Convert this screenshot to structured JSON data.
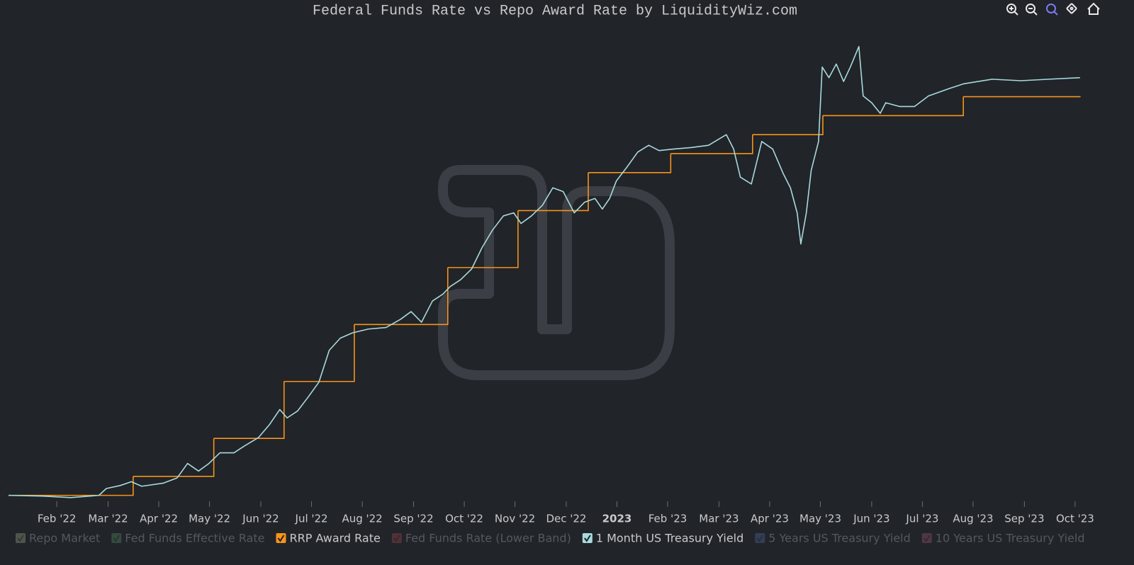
{
  "chart_data": {
    "type": "line",
    "title": "Federal Funds Rate vs Repo Award Rate by LiquidityWiz.com",
    "xlim": [
      2021.99,
      2023.8
    ],
    "ylim": [
      0,
      6.2
    ],
    "xticks": [
      {
        "value": 2022.083,
        "label": "Feb '22"
      },
      {
        "value": 2022.167,
        "label": "Mar '22"
      },
      {
        "value": 2022.25,
        "label": "Apr '22"
      },
      {
        "value": 2022.333,
        "label": "May '22"
      },
      {
        "value": 2022.417,
        "label": "Jun '22"
      },
      {
        "value": 2022.5,
        "label": "Jul '22"
      },
      {
        "value": 2022.583,
        "label": "Aug '22"
      },
      {
        "value": 2022.667,
        "label": "Sep '22"
      },
      {
        "value": 2022.75,
        "label": "Oct '22"
      },
      {
        "value": 2022.833,
        "label": "Nov '22"
      },
      {
        "value": 2022.917,
        "label": "Dec '22"
      },
      2023,
      {
        "value": 2023.083,
        "label": "Feb '23"
      },
      {
        "value": 2023.167,
        "label": "Mar '23"
      },
      {
        "value": 2023.25,
        "label": "Apr '23"
      },
      {
        "value": 2023.333,
        "label": "May '23"
      },
      {
        "value": 2023.417,
        "label": "Jun '23"
      },
      {
        "value": 2023.5,
        "label": "Jul '23"
      },
      {
        "value": 2023.583,
        "label": "Aug '23"
      },
      {
        "value": 2023.667,
        "label": "Sep '23"
      },
      {
        "value": 2023.75,
        "label": "Oct '23"
      }
    ],
    "grid": false,
    "legend": "bottom",
    "series": [
      {
        "name": "Repo Market",
        "color": "#b5c99a",
        "visible": false
      },
      {
        "name": "Fed Funds Effective Rate",
        "color": "#5fa873",
        "visible": false
      },
      {
        "name": "RRP Award Rate",
        "color": "#f7931a",
        "visible": true,
        "step": "after",
        "x": [
          2022.004,
          2022.208,
          2022.34,
          2022.455,
          2022.57,
          2022.723,
          2022.838,
          2022.953,
          2023.088,
          2023.222,
          2023.337,
          2023.567,
          2023.758
        ],
        "values": [
          0.05,
          0.3,
          0.8,
          1.55,
          2.3,
          3.05,
          3.8,
          4.3,
          4.55,
          4.8,
          5.05,
          5.3,
          5.3
        ]
      },
      {
        "name": "Fed Funds Rate (Lower Band)",
        "color": "#c0505a",
        "visible": false
      },
      {
        "name": "1 Month US Treasury Yield",
        "color": "#a8dadc",
        "visible": true,
        "x": [
          2022.004,
          2022.06,
          2022.106,
          2022.152,
          2022.164,
          2022.187,
          2022.205,
          2022.222,
          2022.257,
          2022.28,
          2022.297,
          2022.315,
          2022.332,
          2022.35,
          2022.373,
          2022.39,
          2022.413,
          2022.431,
          2022.448,
          2022.46,
          2022.477,
          2022.495,
          2022.512,
          2022.529,
          2022.547,
          2022.567,
          2022.593,
          2022.622,
          2022.646,
          2022.663,
          2022.68,
          2022.698,
          2022.715,
          2022.727,
          2022.744,
          2022.762,
          2022.779,
          2022.796,
          2022.814,
          2022.831,
          2022.843,
          2022.86,
          2022.878,
          2022.895,
          2022.912,
          2022.93,
          2022.947,
          2022.964,
          2022.976,
          2022.988,
          2022.999,
          2023.017,
          2023.034,
          2023.052,
          2023.069,
          2023.092,
          2023.121,
          2023.15,
          2023.179,
          2023.191,
          2023.202,
          2023.22,
          2023.237,
          2023.255,
          2023.272,
          2023.284,
          2023.295,
          2023.301,
          2023.31,
          2023.318,
          2023.33,
          2023.336,
          2023.347,
          2023.359,
          2023.371,
          2023.382,
          2023.396,
          2023.403,
          2023.417,
          2023.431,
          2023.44,
          2023.463,
          2023.487,
          2023.51,
          2023.545,
          2023.568,
          2023.614,
          2023.661,
          2023.707,
          2023.758
        ],
        "values": [
          0.05,
          0.04,
          0.02,
          0.05,
          0.14,
          0.18,
          0.23,
          0.17,
          0.21,
          0.28,
          0.47,
          0.37,
          0.47,
          0.61,
          0.61,
          0.7,
          0.81,
          0.98,
          1.18,
          1.07,
          1.16,
          1.35,
          1.54,
          1.96,
          2.12,
          2.19,
          2.24,
          2.26,
          2.37,
          2.47,
          2.33,
          2.61,
          2.7,
          2.8,
          2.89,
          3.03,
          3.31,
          3.54,
          3.73,
          3.77,
          3.63,
          3.73,
          3.87,
          4.1,
          4.05,
          3.77,
          3.91,
          3.96,
          3.82,
          3.96,
          4.19,
          4.38,
          4.57,
          4.66,
          4.59,
          4.61,
          4.63,
          4.66,
          4.8,
          4.61,
          4.24,
          4.15,
          4.71,
          4.61,
          4.29,
          4.1,
          3.77,
          3.36,
          3.77,
          4.33,
          4.71,
          5.69,
          5.55,
          5.73,
          5.5,
          5.69,
          5.96,
          5.31,
          5.22,
          5.08,
          5.22,
          5.17,
          5.17,
          5.31,
          5.41,
          5.47,
          5.53,
          5.51,
          5.53,
          5.55
        ]
      },
      {
        "name": "5 Years US Treasury Yield",
        "color": "#5b7fc0",
        "visible": false
      },
      {
        "name": "10 Years US Treasury Yield",
        "color": "#c06080",
        "visible": false
      }
    ]
  }
}
